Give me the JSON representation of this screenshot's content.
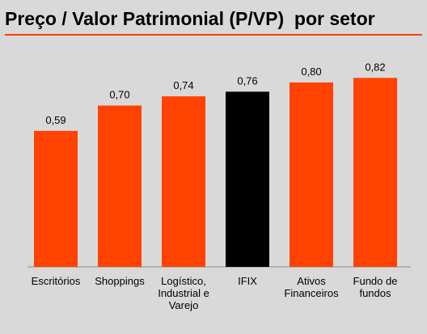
{
  "title": "Preço / Valor Patrimonial (P/VP)  por setor",
  "colors": {
    "accent": "#ff4200",
    "highlight": "#000000",
    "background": "#d9d9d9"
  },
  "chart_data": {
    "type": "bar",
    "title": "Preço / Valor Patrimonial (P/VP)  por setor",
    "categories": [
      [
        "Escritórios"
      ],
      [
        "Shoppings"
      ],
      [
        "Logístico,",
        "Industrial e",
        "Varejo"
      ],
      [
        "IFIX"
      ],
      [
        "Ativos",
        "Financeiros"
      ],
      [
        "Fundo de",
        "fundos"
      ]
    ],
    "values": [
      0.59,
      0.7,
      0.74,
      0.76,
      0.8,
      0.82
    ],
    "value_labels": [
      "0,59",
      "0,70",
      "0,74",
      "0,76",
      "0,80",
      "0,82"
    ],
    "bar_colors": [
      "#ff4200",
      "#ff4200",
      "#ff4200",
      "#000000",
      "#ff4200",
      "#ff4200"
    ],
    "xlabel": "",
    "ylabel": "",
    "ylim": [
      0,
      1
    ],
    "grid": false,
    "legend": "none"
  }
}
